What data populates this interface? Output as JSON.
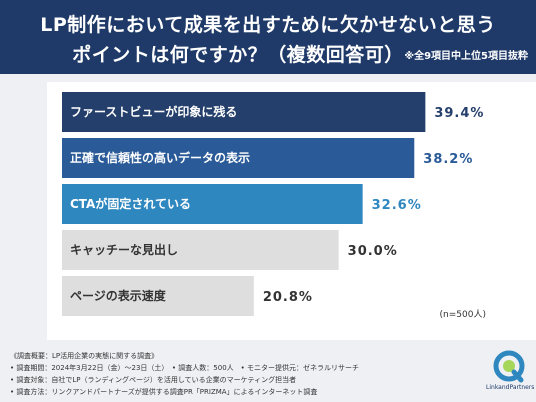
{
  "header": {
    "title_line1": "LP制作において成果を出すために欠かせないと思う",
    "title_line2": "ポイントは何ですか？（複数回答可）",
    "note": "※全9項目中上位5項目抜粋"
  },
  "chart_data": {
    "type": "bar",
    "orientation": "horizontal",
    "categories": [
      "ファーストビューが印象に残る",
      "正確で信頼性の高いデータの表示",
      "CTAが固定されている",
      "キャッチーな見出し",
      "ページの表示速度"
    ],
    "values": [
      39.4,
      38.2,
      32.6,
      30.0,
      20.8
    ],
    "value_labels": [
      "39.4%",
      "38.2%",
      "32.6%",
      "30.0%",
      "20.8%"
    ],
    "colors": [
      "#243f6b",
      "#2a5a97",
      "#2f87bf",
      "#dedede",
      "#dedede"
    ],
    "label_colors": [
      "#ffffff",
      "#ffffff",
      "#ffffff",
      "#333333",
      "#333333"
    ],
    "value_colors": [
      "#243f6b",
      "#2a5a97",
      "#2f87bf",
      "#333333",
      "#333333"
    ],
    "xlim": [
      0,
      45
    ]
  },
  "sample_note": "(n=500人)",
  "footer": {
    "lines": [
      "《調査概要：LP活用企業の実態に関する調査》",
      "• 調査期間：2024年3月22日（金）〜23日（土）　• 調査人数：500人　• モニター提供元：ゼネラルリサーチ",
      "• 調査対象：自社でLP（ランディングページ）を活用している企業のマーケティング担当者",
      "• 調査方法：リンクアンドパートナーズが提供する調査PR「PRIZMA」によるインターネット調査"
    ]
  },
  "logo": {
    "text": "LinkandPartners",
    "color": "#2f87bf"
  }
}
